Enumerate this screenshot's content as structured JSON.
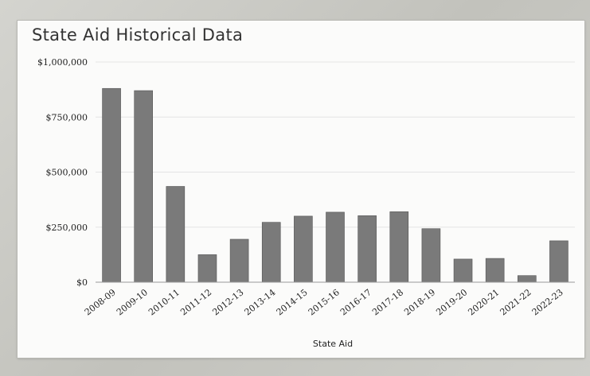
{
  "chart_data": {
    "type": "bar",
    "title": "State Aid Historical Data",
    "xlabel": "State Aid",
    "ylabel": "",
    "ylim": [
      0,
      1000000
    ],
    "yticks": [
      0,
      250000,
      500000,
      750000,
      1000000
    ],
    "ytick_labels": [
      "$0",
      "$250,000",
      "$500,000",
      "$750,000",
      "$1,000,000"
    ],
    "categories": [
      "2008-09",
      "2009-10",
      "2010-11",
      "2011-12",
      "2012-13",
      "2013-14",
      "2014-15",
      "2015-16",
      "2016-17",
      "2017-18",
      "2018-19",
      "2019-20",
      "2020-21",
      "2021-22",
      "2022-23"
    ],
    "values": [
      880000,
      870000,
      435000,
      125000,
      195000,
      272000,
      300000,
      318000,
      302000,
      320000,
      243000,
      105000,
      108000,
      30000,
      188000
    ],
    "grid": true,
    "bar_color": "#7a7a7a"
  }
}
